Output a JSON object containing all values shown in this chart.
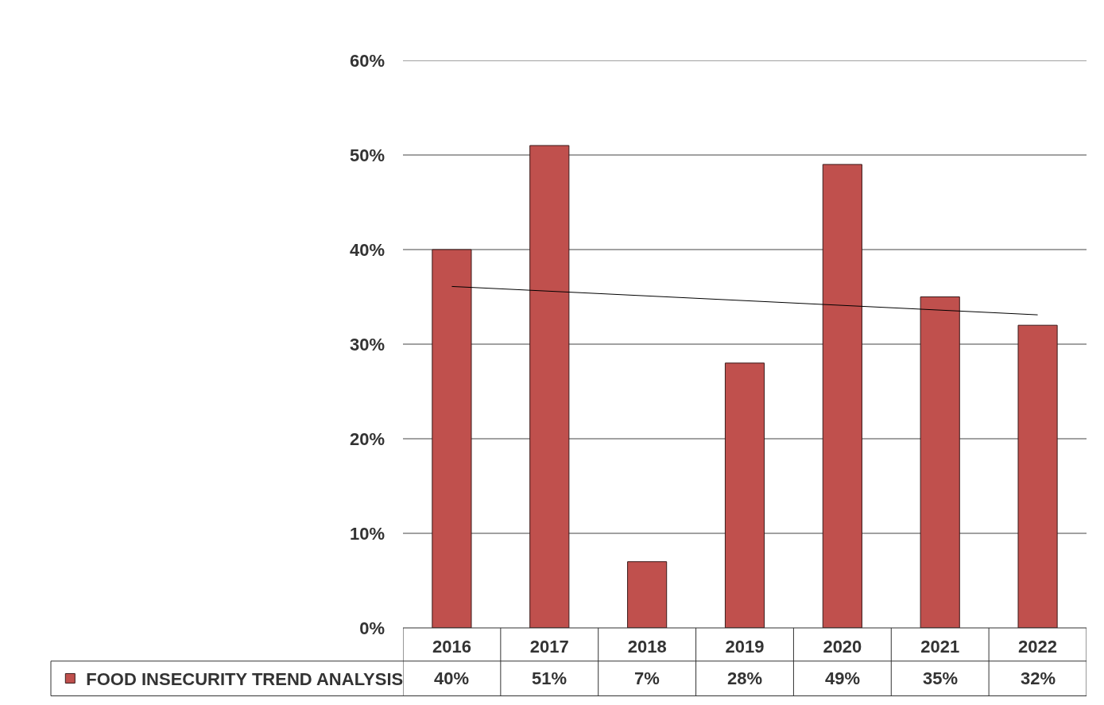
{
  "chart_data": {
    "type": "bar",
    "categories": [
      "2016",
      "2017",
      "2018",
      "2019",
      "2020",
      "2021",
      "2022"
    ],
    "series": [
      {
        "name": "FOOD INSECURITY TREND ANALYSIS",
        "color": "#c0504d",
        "values": [
          40,
          51,
          7,
          28,
          49,
          35,
          32
        ],
        "value_labels": [
          "40%",
          "51%",
          "7%",
          "28%",
          "49%",
          "35%",
          "32%"
        ]
      },
      {
        "type": "line",
        "color": "#000000",
        "values": [
          36.1,
          null,
          null,
          null,
          null,
          null,
          33.1
        ]
      }
    ],
    "ylim": [
      0,
      60
    ],
    "yticks": [
      {
        "value": 0,
        "label": "0%"
      },
      {
        "value": 10,
        "label": "10%"
      },
      {
        "value": 20,
        "label": "20%"
      },
      {
        "value": 30,
        "label": "30%"
      },
      {
        "value": 40,
        "label": "40%"
      },
      {
        "value": 50,
        "label": "50%"
      },
      {
        "value": 60,
        "label": "60%"
      }
    ],
    "grid": "y",
    "legend": "bottom left"
  }
}
